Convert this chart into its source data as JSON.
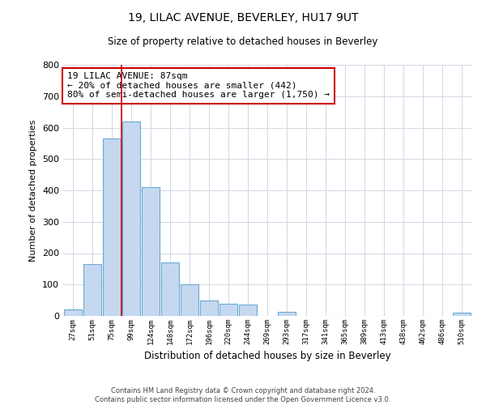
{
  "title": "19, LILAC AVENUE, BEVERLEY, HU17 9UT",
  "subtitle": "Size of property relative to detached houses in Beverley",
  "xlabel": "Distribution of detached houses by size in Beverley",
  "ylabel": "Number of detached properties",
  "bar_labels": [
    "27sqm",
    "51sqm",
    "75sqm",
    "99sqm",
    "124sqm",
    "148sqm",
    "172sqm",
    "196sqm",
    "220sqm",
    "244sqm",
    "269sqm",
    "293sqm",
    "317sqm",
    "341sqm",
    "365sqm",
    "389sqm",
    "413sqm",
    "438sqm",
    "462sqm",
    "486sqm",
    "510sqm"
  ],
  "bar_values": [
    20,
    165,
    565,
    620,
    410,
    170,
    100,
    50,
    40,
    35,
    0,
    12,
    0,
    0,
    0,
    0,
    0,
    0,
    0,
    0,
    10
  ],
  "bar_color": "#c5d8f0",
  "bar_edge_color": "#6aaad4",
  "vline_color": "#cc0000",
  "vline_x_index": 2.5,
  "annotation_text": "19 LILAC AVENUE: 87sqm\n← 20% of detached houses are smaller (442)\n80% of semi-detached houses are larger (1,750) →",
  "annotation_box_color": "#ffffff",
  "annotation_box_edge": "#cc0000",
  "ylim": [
    0,
    800
  ],
  "yticks": [
    0,
    100,
    200,
    300,
    400,
    500,
    600,
    700,
    800
  ],
  "footer_text": "Contains HM Land Registry data © Crown copyright and database right 2024.\nContains public sector information licensed under the Open Government Licence v3.0.",
  "bg_color": "#ffffff",
  "grid_color": "#d0d8e4"
}
